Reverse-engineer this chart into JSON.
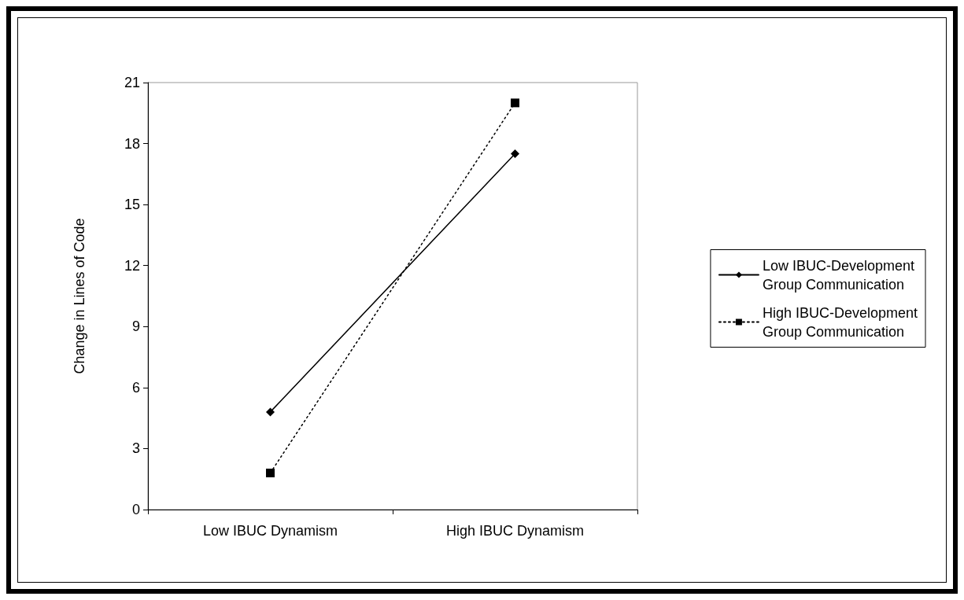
{
  "chart_data": {
    "type": "line",
    "ylabel": "Change in Lines of Code",
    "categories": [
      "Low IBUC Dynamism",
      "High IBUC Dynamism"
    ],
    "series": [
      {
        "name": "Low IBUC-Development\nGroup Communication",
        "color": "#000000",
        "values": [
          4.8,
          17.5
        ],
        "marker": "diamond",
        "line_style": "solid"
      },
      {
        "name": "High IBUC-Development\nGroup Communication",
        "color": "#000000",
        "values": [
          1.8,
          20
        ],
        "marker": "square",
        "line_style": "dotted"
      }
    ],
    "ylim": [
      0,
      21
    ],
    "yticks": [
      0,
      3,
      6,
      9,
      12,
      15,
      18,
      21
    ],
    "grid": false,
    "legend": "right"
  }
}
